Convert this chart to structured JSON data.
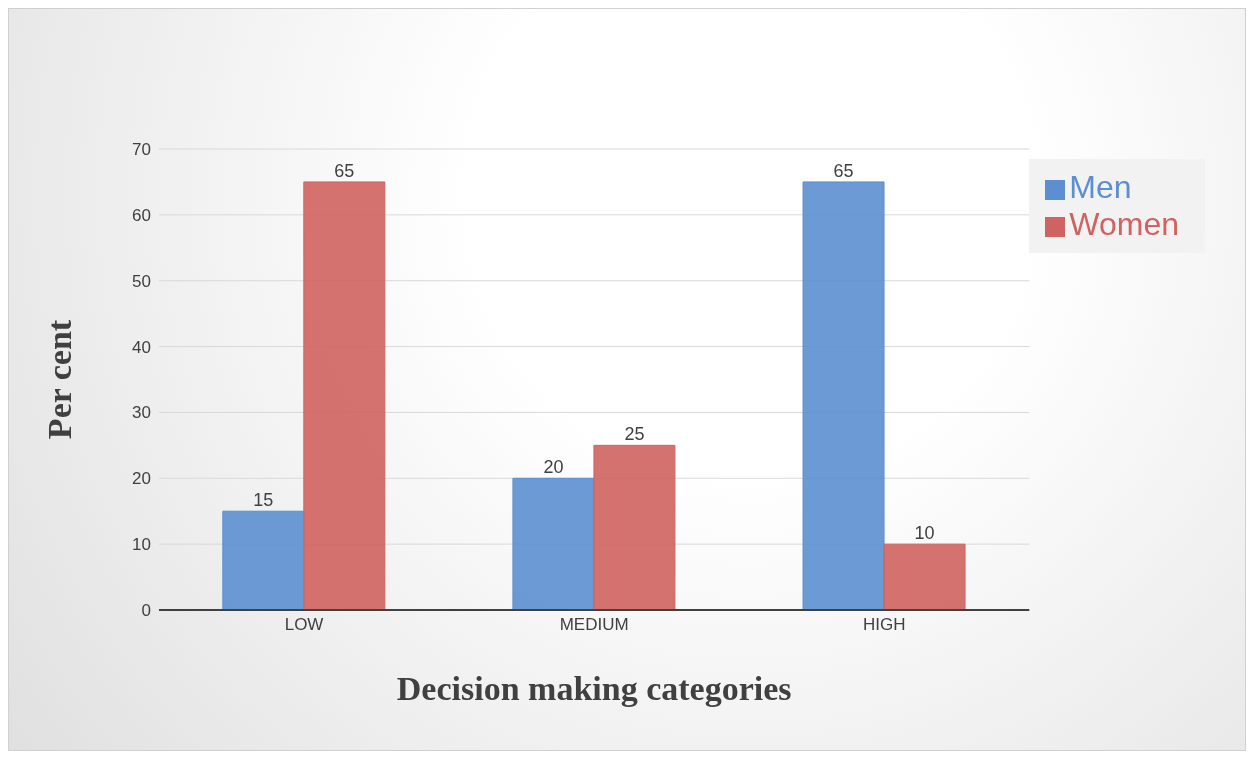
{
  "chart_data": {
    "type": "bar",
    "xlabel": "Decision making categories",
    "ylabel": "Per cent",
    "categories": [
      "LOW",
      "MEDIUM",
      "HIGH"
    ],
    "series": [
      {
        "name": "Men",
        "color": "#5b8fd0",
        "values": [
          15,
          20,
          65
        ]
      },
      {
        "name": "Women",
        "color": "#cf6361",
        "values": [
          65,
          25,
          10
        ]
      }
    ],
    "ylim": [
      0,
      70
    ],
    "yticks": [
      0,
      10,
      20,
      30,
      40,
      50,
      60,
      70
    ],
    "grid": "y",
    "legend": "top right",
    "data_labels": true
  }
}
